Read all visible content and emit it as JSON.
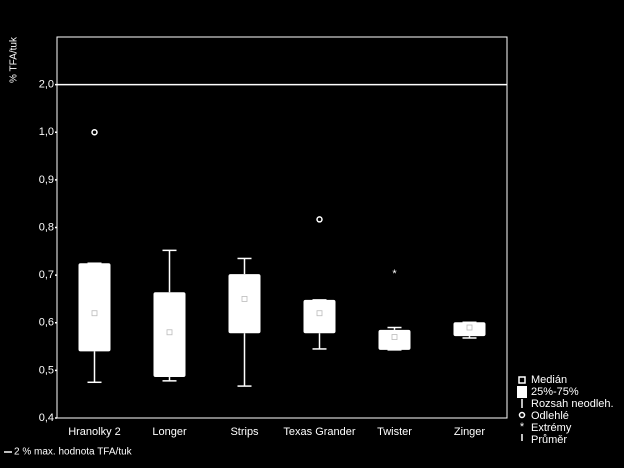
{
  "chart_data": {
    "type": "box",
    "y_label": "% TFA/tuk",
    "categories": [
      "Hranolky 2",
      "Longer",
      "Strips",
      "Texas Grander",
      "Twister",
      "Zinger"
    ],
    "boxes": [
      {
        "min": 0.475,
        "q1": 0.54,
        "median": 0.62,
        "q3": 0.725,
        "max": 0.725,
        "outliers": [
          1.0
        ],
        "extremes": []
      },
      {
        "min": 0.478,
        "q1": 0.486,
        "median": 0.58,
        "q3": 0.664,
        "max": 0.752,
        "outliers": [],
        "extremes": []
      },
      {
        "min": 0.467,
        "q1": 0.578,
        "median": 0.65,
        "q3": 0.702,
        "max": 0.735,
        "outliers": [],
        "extremes": []
      },
      {
        "min": 0.545,
        "q1": 0.578,
        "median": 0.62,
        "q3": 0.648,
        "max": 0.648,
        "outliers": [
          0.817
        ],
        "extremes": []
      },
      {
        "min": 0.543,
        "q1": 0.543,
        "median": 0.57,
        "q3": 0.585,
        "max": 0.59,
        "outliers": [],
        "extremes": [
          0.706
        ]
      },
      {
        "min": 0.568,
        "q1": 0.572,
        "median": 0.59,
        "q3": 0.601,
        "max": 0.601,
        "outliers": [],
        "extremes": []
      }
    ],
    "ylim": [
      0.4,
      3.0
    ],
    "yticks": [
      {
        "value": 0.4,
        "label": "0,4"
      },
      {
        "value": 0.5,
        "label": "0,5"
      },
      {
        "value": 0.6,
        "label": "0,6"
      },
      {
        "value": 0.7,
        "label": "0,7"
      },
      {
        "value": 0.8,
        "label": "0,8"
      },
      {
        "value": 0.9,
        "label": "0,9"
      },
      {
        "value": 1.0,
        "label": "1,0"
      },
      {
        "value": 2.0,
        "label": "2,0"
      }
    ],
    "reference_line": {
      "value": 2.0,
      "label": "2 % max. hodnota TFA/tuk"
    },
    "legend": [
      "Medián",
      "25%-75%",
      "Rozsah neodleh.",
      "Odlehlé",
      "Extrémy",
      "Průměr"
    ]
  }
}
